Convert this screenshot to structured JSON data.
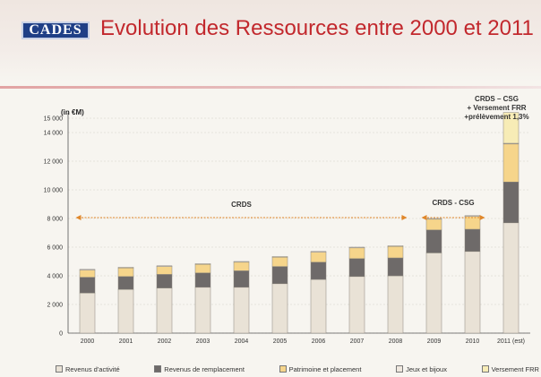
{
  "header": {
    "logo_text": "CADES",
    "title": "Evolution des Ressources entre 2000 et 2011"
  },
  "colors": {
    "title": "#c2282d",
    "revenus_activite": "#e9e2d6",
    "revenus_remplacement": "#6e6a69",
    "patrimoine": "#f6d58b",
    "jeux": "#efe8df",
    "versement_frr": "#f7ecb6",
    "arrow": "#e0872a"
  },
  "chart_data": {
    "type": "bar",
    "stacked": true,
    "title": "Evolution des Ressources entre 2000 et 2011",
    "ylabel": "(in €M)",
    "xlabel": "",
    "ylim": [
      0,
      15000
    ],
    "yticks": [
      0,
      2000,
      4000,
      6000,
      8000,
      10000,
      12000,
      14000,
      15000
    ],
    "ytick_labels": [
      "0",
      "2 000",
      "4 000",
      "6 000",
      "8 000",
      "10 000",
      "12 000",
      "14 000",
      "15 000"
    ],
    "grid": true,
    "legend_position": "bottom",
    "categories": [
      "2000",
      "2001",
      "2002",
      "2003",
      "2004",
      "2005",
      "2006",
      "2007",
      "2008",
      "2009",
      "2010",
      "2011 (est)"
    ],
    "series": [
      {
        "name": "Revenus d'activité",
        "values": [
          2800,
          3050,
          3150,
          3200,
          3200,
          3450,
          3750,
          3950,
          4000,
          5600,
          5700,
          7700
        ]
      },
      {
        "name": "Revenus de remplacement",
        "values": [
          1100,
          900,
          950,
          1000,
          1150,
          1200,
          1200,
          1250,
          1250,
          1600,
          1550,
          2850
        ]
      },
      {
        "name": "Patrimoine et placement",
        "values": [
          500,
          600,
          550,
          600,
          600,
          650,
          700,
          750,
          800,
          750,
          900,
          2650
        ]
      },
      {
        "name": "Jeux et bijoux",
        "values": [
          50,
          50,
          50,
          50,
          50,
          50,
          50,
          50,
          50,
          50,
          50,
          50
        ]
      },
      {
        "name": "Versement FRR",
        "values": [
          0,
          0,
          0,
          0,
          0,
          0,
          0,
          0,
          0,
          0,
          0,
          2150
        ]
      }
    ],
    "annotations": {
      "crds": "CRDS",
      "crds_csg": "CRDS - CSG",
      "crds_csg_frr": [
        "CRDS – CSG",
        "+ Versement FRR",
        "+prélèvement 1,3%"
      ]
    }
  }
}
